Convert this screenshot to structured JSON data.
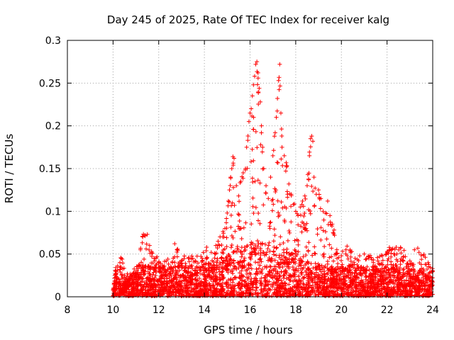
{
  "chart_data": {
    "type": "scatter",
    "title": "Day 245 of 2025, Rate Of TEC Index for receiver kalg",
    "xlabel": "GPS time / hours",
    "ylabel": "ROTI / TECUs",
    "xlim": [
      8,
      24
    ],
    "ylim": [
      0,
      0.3
    ],
    "x_ticks": [
      "8",
      "10",
      "12",
      "14",
      "16",
      "18",
      "20",
      "22",
      "24"
    ],
    "y_ticks": [
      "0",
      "0.05",
      "0.1",
      "0.15",
      "0.2",
      "0.25",
      "0.3"
    ],
    "grid": true,
    "legend": "none",
    "marker": "plus",
    "series": [
      {
        "name": "ROTI",
        "color": "#ff0000",
        "points": [
          [
            10.0,
            0.008
          ],
          [
            10.1,
            0.03
          ],
          [
            10.2,
            0.036
          ],
          [
            10.3,
            0.04
          ],
          [
            10.4,
            0.044
          ],
          [
            10.5,
            0.025
          ],
          [
            10.7,
            0.02
          ],
          [
            10.9,
            0.028
          ],
          [
            11.1,
            0.033
          ],
          [
            11.2,
            0.055
          ],
          [
            11.3,
            0.07
          ],
          [
            11.4,
            0.072
          ],
          [
            11.5,
            0.073
          ],
          [
            11.6,
            0.06
          ],
          [
            11.8,
            0.045
          ],
          [
            12.0,
            0.04
          ],
          [
            12.2,
            0.035
          ],
          [
            12.4,
            0.044
          ],
          [
            12.6,
            0.04
          ],
          [
            12.7,
            0.062
          ],
          [
            12.8,
            0.055
          ],
          [
            13.0,
            0.042
          ],
          [
            13.3,
            0.045
          ],
          [
            13.6,
            0.042
          ],
          [
            13.9,
            0.045
          ],
          [
            14.1,
            0.058
          ],
          [
            14.3,
            0.052
          ],
          [
            14.5,
            0.06
          ],
          [
            14.6,
            0.065
          ],
          [
            14.8,
            0.07
          ],
          [
            14.9,
            0.08
          ],
          [
            15.0,
            0.098
          ],
          [
            15.05,
            0.112
          ],
          [
            15.1,
            0.125
          ],
          [
            15.15,
            0.14
          ],
          [
            15.2,
            0.15
          ],
          [
            15.25,
            0.164
          ],
          [
            15.3,
            0.162
          ],
          [
            15.4,
            0.13
          ],
          [
            15.5,
            0.118
          ],
          [
            15.6,
            0.135
          ],
          [
            15.7,
            0.145
          ],
          [
            15.8,
            0.15
          ],
          [
            15.85,
            0.175
          ],
          [
            15.9,
            0.183
          ],
          [
            15.95,
            0.205
          ],
          [
            16.0,
            0.215
          ],
          [
            16.05,
            0.22
          ],
          [
            16.1,
            0.235
          ],
          [
            16.15,
            0.248
          ],
          [
            16.2,
            0.258
          ],
          [
            16.25,
            0.272
          ],
          [
            16.3,
            0.275
          ],
          [
            16.35,
            0.262
          ],
          [
            16.4,
            0.244
          ],
          [
            16.45,
            0.228
          ],
          [
            16.5,
            0.2
          ],
          [
            16.55,
            0.175
          ],
          [
            16.6,
            0.15
          ],
          [
            16.7,
            0.13
          ],
          [
            16.8,
            0.115
          ],
          [
            16.9,
            0.14
          ],
          [
            17.0,
            0.165
          ],
          [
            17.1,
            0.192
          ],
          [
            17.15,
            0.21
          ],
          [
            17.2,
            0.232
          ],
          [
            17.25,
            0.253
          ],
          [
            17.3,
            0.272
          ],
          [
            17.35,
            0.215
          ],
          [
            17.4,
            0.175
          ],
          [
            17.5,
            0.165
          ],
          [
            17.6,
            0.152
          ],
          [
            17.7,
            0.132
          ],
          [
            17.8,
            0.12
          ],
          [
            17.9,
            0.108
          ],
          [
            18.0,
            0.1
          ],
          [
            18.1,
            0.095
          ],
          [
            18.2,
            0.105
          ],
          [
            18.3,
            0.112
          ],
          [
            18.4,
            0.118
          ],
          [
            18.5,
            0.13
          ],
          [
            18.6,
            0.165
          ],
          [
            18.65,
            0.185
          ],
          [
            18.7,
            0.188
          ],
          [
            18.75,
            0.182
          ],
          [
            18.8,
            0.14
          ],
          [
            18.9,
            0.12
          ],
          [
            19.0,
            0.125
          ],
          [
            19.1,
            0.115
          ],
          [
            19.2,
            0.1
          ],
          [
            19.3,
            0.098
          ],
          [
            19.4,
            0.112
          ],
          [
            19.5,
            0.095
          ],
          [
            19.6,
            0.085
          ],
          [
            19.7,
            0.072
          ],
          [
            19.8,
            0.055
          ],
          [
            20.0,
            0.048
          ],
          [
            20.2,
            0.055
          ],
          [
            20.4,
            0.052
          ],
          [
            20.6,
            0.045
          ],
          [
            20.8,
            0.048
          ],
          [
            21.0,
            0.05
          ],
          [
            21.2,
            0.045
          ],
          [
            21.4,
            0.04
          ],
          [
            21.6,
            0.042
          ],
          [
            21.8,
            0.048
          ],
          [
            22.0,
            0.052
          ],
          [
            22.2,
            0.055
          ],
          [
            22.4,
            0.058
          ],
          [
            22.6,
            0.057
          ],
          [
            22.8,
            0.047
          ],
          [
            23.0,
            0.042
          ],
          [
            23.2,
            0.055
          ],
          [
            23.4,
            0.052
          ],
          [
            23.6,
            0.048
          ],
          [
            23.8,
            0.04
          ],
          [
            24.0,
            0.03
          ]
        ]
      }
    ]
  }
}
